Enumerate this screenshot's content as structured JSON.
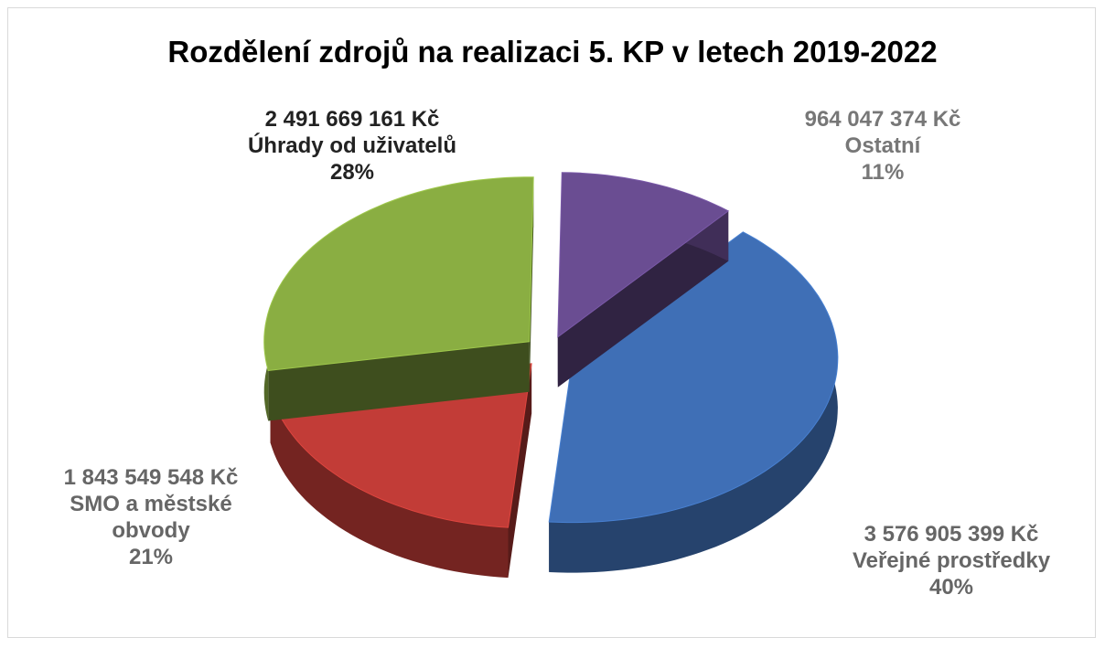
{
  "chart_data": {
    "type": "pie3d",
    "title": "Rozdělení zdrojů na realizaci 5. KP v letech 2019-2022",
    "categories": [
      "Veřejné prostředky",
      "SMO a městské obvody",
      "Úhrady od uživatelů",
      "Ostatní"
    ],
    "values": [
      3576905399,
      1843549548,
      2491669161,
      964047374
    ],
    "value_labels": [
      "3 576 905 399 Kč",
      "1 843 549 548 Kč",
      "2 491 669 161 Kč",
      "964 047 374 Kč"
    ],
    "percent_labels": [
      "40%",
      "21%",
      "28%",
      "11%"
    ],
    "colors": [
      "#3f6fb6",
      "#c23c37",
      "#8aae42",
      "#6a4d92"
    ]
  }
}
